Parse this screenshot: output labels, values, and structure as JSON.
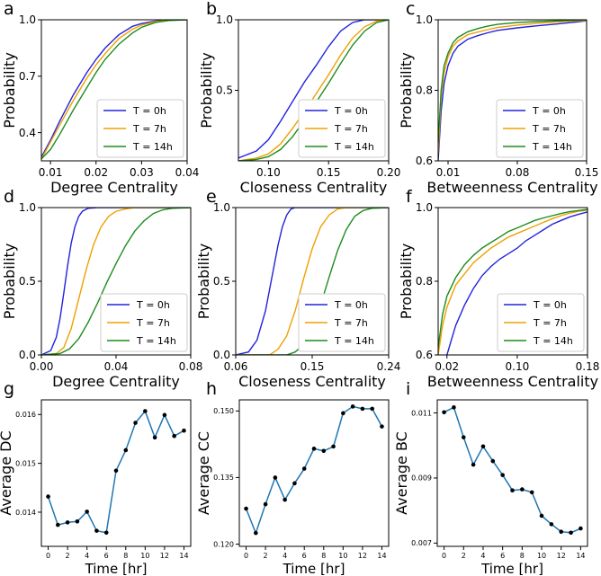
{
  "colors": {
    "t0": "#2222dd",
    "t7": "#f0a000",
    "t14": "#1e8c1e",
    "avg_line": "#1f77b4",
    "avg_marker": "#000000"
  },
  "chart_data": [
    {
      "panel": "a",
      "type": "line",
      "xlabel": "Degree Centrality",
      "ylabel": "Probability",
      "xlim": [
        0.008,
        0.04
      ],
      "ylim": [
        0.25,
        1.0
      ],
      "xticks": [
        0.01,
        0.02,
        0.03,
        0.04
      ],
      "xtick_labels": [
        "0.01",
        "0.02",
        "0.03",
        "0.04"
      ],
      "yticks": [
        0.4,
        0.7,
        1.0
      ],
      "ytick_labels": [
        "0.4",
        "0.7",
        "1.0"
      ],
      "legend": "bottom-right",
      "series": [
        {
          "name": "T = 0h",
          "color": "t0",
          "x": [
            0.008,
            0.01,
            0.012,
            0.015,
            0.018,
            0.02,
            0.022,
            0.025,
            0.028,
            0.03,
            0.033,
            0.036,
            0.04
          ],
          "y": [
            0.27,
            0.36,
            0.46,
            0.6,
            0.72,
            0.79,
            0.85,
            0.92,
            0.965,
            0.98,
            0.993,
            0.998,
            1.0
          ]
        },
        {
          "name": "T = 7h",
          "color": "t7",
          "x": [
            0.008,
            0.01,
            0.012,
            0.015,
            0.018,
            0.02,
            0.022,
            0.025,
            0.028,
            0.03,
            0.033,
            0.036,
            0.04
          ],
          "y": [
            0.26,
            0.35,
            0.44,
            0.57,
            0.69,
            0.76,
            0.82,
            0.9,
            0.95,
            0.972,
            0.99,
            0.997,
            1.0
          ]
        },
        {
          "name": "T = 14h",
          "color": "t14",
          "x": [
            0.008,
            0.01,
            0.012,
            0.015,
            0.018,
            0.02,
            0.022,
            0.025,
            0.028,
            0.03,
            0.033,
            0.036,
            0.04
          ],
          "y": [
            0.26,
            0.31,
            0.39,
            0.52,
            0.64,
            0.72,
            0.79,
            0.87,
            0.93,
            0.96,
            0.985,
            0.996,
            1.0
          ]
        }
      ]
    },
    {
      "panel": "b",
      "type": "line",
      "xlabel": "Closeness Centrality",
      "ylabel": "Probability",
      "xlim": [
        0.075,
        0.2
      ],
      "ylim": [
        0,
        1.0
      ],
      "xticks": [
        0.1,
        0.15,
        0.2
      ],
      "xtick_labels": [
        "0.10",
        "0.15",
        "0.20"
      ],
      "yticks": [
        0.5,
        1.0
      ],
      "ytick_labels": [
        "0.5",
        "1.0"
      ],
      "legend": "bottom-right",
      "series": [
        {
          "name": "T = 0h",
          "color": "t0",
          "x": [
            0.075,
            0.09,
            0.1,
            0.11,
            0.12,
            0.13,
            0.14,
            0.15,
            0.16,
            0.17,
            0.18,
            0.2
          ],
          "y": [
            0.02,
            0.07,
            0.15,
            0.28,
            0.42,
            0.56,
            0.68,
            0.81,
            0.92,
            0.98,
            1.0,
            1.0
          ]
        },
        {
          "name": "T = 7h",
          "color": "t7",
          "x": [
            0.075,
            0.09,
            0.1,
            0.11,
            0.12,
            0.13,
            0.14,
            0.15,
            0.16,
            0.17,
            0.18,
            0.19,
            0.2
          ],
          "y": [
            0.0,
            0.02,
            0.05,
            0.12,
            0.23,
            0.35,
            0.48,
            0.61,
            0.75,
            0.87,
            0.95,
            0.99,
            1.0
          ]
        },
        {
          "name": "T = 14h",
          "color": "t14",
          "x": [
            0.075,
            0.09,
            0.1,
            0.11,
            0.12,
            0.13,
            0.14,
            0.15,
            0.16,
            0.17,
            0.18,
            0.19,
            0.2
          ],
          "y": [
            0.0,
            0.01,
            0.03,
            0.08,
            0.17,
            0.29,
            0.42,
            0.55,
            0.69,
            0.82,
            0.92,
            0.98,
            1.0
          ]
        }
      ]
    },
    {
      "panel": "c",
      "type": "line",
      "xlabel": "Betweenness Centrality",
      "ylabel": "Probability",
      "xlim": [
        0.0,
        0.15
      ],
      "ylim": [
        0.6,
        1.0
      ],
      "xticks": [
        0.01,
        0.08,
        0.15
      ],
      "xtick_labels": [
        "0.01",
        "0.08",
        "0.15"
      ],
      "yticks": [
        0.6,
        0.8,
        1.0
      ],
      "ytick_labels": [
        "0.6",
        "0.8",
        "1.0"
      ],
      "legend": "bottom-right",
      "series": [
        {
          "name": "T = 0h",
          "color": "t0",
          "x": [
            0.0,
            0.003,
            0.006,
            0.01,
            0.015,
            0.02,
            0.03,
            0.04,
            0.05,
            0.06,
            0.08,
            0.1,
            0.12,
            0.14,
            0.15
          ],
          "y": [
            0.6,
            0.74,
            0.82,
            0.87,
            0.905,
            0.925,
            0.945,
            0.955,
            0.963,
            0.97,
            0.977,
            0.983,
            0.988,
            0.994,
            0.997
          ]
        },
        {
          "name": "T = 7h",
          "color": "t7",
          "x": [
            0.0,
            0.003,
            0.006,
            0.01,
            0.015,
            0.02,
            0.03,
            0.04,
            0.05,
            0.06,
            0.08,
            0.1,
            0.12,
            0.14,
            0.15
          ],
          "y": [
            0.62,
            0.78,
            0.85,
            0.895,
            0.925,
            0.94,
            0.958,
            0.965,
            0.972,
            0.978,
            0.985,
            0.99,
            0.994,
            0.997,
            0.998
          ]
        },
        {
          "name": "T = 14h",
          "color": "t14",
          "x": [
            0.0,
            0.003,
            0.006,
            0.01,
            0.015,
            0.02,
            0.03,
            0.04,
            0.05,
            0.06,
            0.08,
            0.1,
            0.12,
            0.14,
            0.15
          ],
          "y": [
            0.65,
            0.8,
            0.87,
            0.905,
            0.935,
            0.95,
            0.966,
            0.975,
            0.982,
            0.987,
            0.992,
            0.995,
            0.997,
            0.999,
            1.0
          ]
        }
      ]
    },
    {
      "panel": "d",
      "type": "line",
      "xlabel": "Degree Centrality",
      "ylabel": "Probability",
      "xlim": [
        0.0,
        0.08
      ],
      "ylim": [
        0,
        1.0
      ],
      "xticks": [
        0.0,
        0.04,
        0.08
      ],
      "xtick_labels": [
        "0.00",
        "0.04",
        "0.08"
      ],
      "yticks": [
        0.0,
        0.5,
        1.0
      ],
      "ytick_labels": [
        "0.0",
        "0.5",
        "1.0"
      ],
      "legend": "bottom-right",
      "series": [
        {
          "name": "T = 0h",
          "color": "t0",
          "x": [
            0.0,
            0.005,
            0.008,
            0.01,
            0.012,
            0.014,
            0.016,
            0.018,
            0.02,
            0.022,
            0.025,
            0.03,
            0.08
          ],
          "y": [
            0.0,
            0.03,
            0.12,
            0.25,
            0.42,
            0.6,
            0.76,
            0.87,
            0.94,
            0.975,
            0.995,
            1.0,
            1.0
          ]
        },
        {
          "name": "T = 7h",
          "color": "t7",
          "x": [
            0.0,
            0.008,
            0.012,
            0.016,
            0.02,
            0.024,
            0.028,
            0.032,
            0.036,
            0.04,
            0.045,
            0.05,
            0.08
          ],
          "y": [
            0.0,
            0.01,
            0.05,
            0.18,
            0.38,
            0.58,
            0.75,
            0.87,
            0.94,
            0.975,
            0.99,
            1.0,
            1.0
          ]
        },
        {
          "name": "T = 14h",
          "color": "t14",
          "x": [
            0.0,
            0.01,
            0.015,
            0.02,
            0.025,
            0.03,
            0.035,
            0.04,
            0.045,
            0.05,
            0.055,
            0.06,
            0.065,
            0.07,
            0.08
          ],
          "y": [
            0.0,
            0.01,
            0.04,
            0.11,
            0.22,
            0.35,
            0.49,
            0.62,
            0.74,
            0.84,
            0.91,
            0.96,
            0.985,
            0.995,
            1.0
          ]
        }
      ]
    },
    {
      "panel": "e",
      "type": "line",
      "xlabel": "Closeness Centrality",
      "ylabel": "Probability",
      "xlim": [
        0.06,
        0.24
      ],
      "ylim": [
        0,
        1.0
      ],
      "xticks": [
        0.06,
        0.15,
        0.24
      ],
      "xtick_labels": [
        "0.06",
        "0.15",
        "0.24"
      ],
      "yticks": [
        0.0,
        0.5,
        1.0
      ],
      "ytick_labels": [
        "0.0",
        "0.5",
        "1.0"
      ],
      "legend": "bottom-right",
      "series": [
        {
          "name": "T = 0h",
          "color": "t0",
          "x": [
            0.06,
            0.075,
            0.085,
            0.095,
            0.1,
            0.105,
            0.11,
            0.115,
            0.12,
            0.125,
            0.13,
            0.24
          ],
          "y": [
            0.0,
            0.02,
            0.1,
            0.3,
            0.45,
            0.6,
            0.75,
            0.87,
            0.95,
            0.99,
            1.0,
            1.0
          ]
        },
        {
          "name": "T = 7h",
          "color": "t7",
          "x": [
            0.06,
            0.1,
            0.11,
            0.12,
            0.13,
            0.14,
            0.15,
            0.16,
            0.17,
            0.18,
            0.19,
            0.24
          ],
          "y": [
            0.0,
            0.0,
            0.04,
            0.13,
            0.3,
            0.52,
            0.72,
            0.87,
            0.95,
            0.99,
            1.0,
            1.0
          ]
        },
        {
          "name": "T = 14h",
          "color": "t14",
          "x": [
            0.06,
            0.12,
            0.13,
            0.14,
            0.15,
            0.16,
            0.17,
            0.18,
            0.19,
            0.2,
            0.21,
            0.22,
            0.24
          ],
          "y": [
            0.0,
            0.0,
            0.02,
            0.07,
            0.18,
            0.34,
            0.53,
            0.71,
            0.85,
            0.94,
            0.98,
            0.995,
            1.0
          ]
        }
      ]
    },
    {
      "panel": "f",
      "type": "line",
      "xlabel": "Betweenness Centrality",
      "ylabel": "Probability",
      "xlim": [
        0.01,
        0.18
      ],
      "ylim": [
        0.6,
        1.0
      ],
      "xticks": [
        0.02,
        0.1,
        0.18
      ],
      "xtick_labels": [
        "0.02",
        "0.10",
        "0.18"
      ],
      "yticks": [
        0.6,
        0.8,
        1.0
      ],
      "ytick_labels": [
        "0.6",
        "0.8",
        "1.0"
      ],
      "legend": "bottom-right",
      "series": [
        {
          "name": "T = 0h",
          "color": "t0",
          "x": [
            0.02,
            0.025,
            0.03,
            0.04,
            0.05,
            0.06,
            0.07,
            0.08,
            0.09,
            0.1,
            0.11,
            0.12,
            0.13,
            0.14,
            0.15,
            0.16,
            0.17,
            0.18
          ],
          "y": [
            0.6,
            0.64,
            0.68,
            0.735,
            0.78,
            0.815,
            0.84,
            0.86,
            0.875,
            0.89,
            0.91,
            0.925,
            0.94,
            0.955,
            0.965,
            0.975,
            0.982,
            0.988
          ]
        },
        {
          "name": "T = 7h",
          "color": "t7",
          "x": [
            0.01,
            0.015,
            0.02,
            0.03,
            0.04,
            0.05,
            0.06,
            0.07,
            0.08,
            0.09,
            0.1,
            0.11,
            0.12,
            0.13,
            0.14,
            0.15,
            0.16,
            0.17,
            0.18
          ],
          "y": [
            0.6,
            0.68,
            0.73,
            0.79,
            0.82,
            0.85,
            0.87,
            0.89,
            0.905,
            0.92,
            0.93,
            0.94,
            0.95,
            0.96,
            0.97,
            0.978,
            0.985,
            0.99,
            0.993
          ]
        },
        {
          "name": "T = 14h",
          "color": "t14",
          "x": [
            0.01,
            0.015,
            0.02,
            0.03,
            0.04,
            0.05,
            0.06,
            0.07,
            0.08,
            0.09,
            0.1,
            0.11,
            0.12,
            0.13,
            0.14,
            0.15,
            0.16,
            0.17,
            0.18
          ],
          "y": [
            0.62,
            0.71,
            0.76,
            0.81,
            0.845,
            0.87,
            0.89,
            0.905,
            0.92,
            0.935,
            0.945,
            0.955,
            0.965,
            0.972,
            0.978,
            0.984,
            0.989,
            0.992,
            0.995
          ]
        }
      ]
    },
    {
      "panel": "g",
      "type": "line",
      "xlabel": "Time [hr]",
      "ylabel": "Average DC",
      "xlim": [
        -0.7,
        14.7
      ],
      "ylim": [
        0.0133,
        0.0163
      ],
      "xticks": [
        0,
        2,
        4,
        6,
        8,
        10,
        12,
        14
      ],
      "xtick_labels": [
        "0",
        "2",
        "4",
        "6",
        "8",
        "10",
        "12",
        "14"
      ],
      "yticks": [
        0.014,
        0.015,
        0.016
      ],
      "ytick_labels": [
        "0.014",
        "0.015",
        "0.016"
      ],
      "series": [
        {
          "color": "avg_line",
          "x": [
            0,
            1,
            2,
            3,
            4,
            5,
            6,
            7,
            8,
            9,
            10,
            11,
            12,
            13,
            14
          ],
          "y": [
            0.01432,
            0.01374,
            0.01379,
            0.01381,
            0.01401,
            0.01362,
            0.01358,
            0.01485,
            0.01527,
            0.01583,
            0.01607,
            0.01553,
            0.01599,
            0.01556,
            0.01567
          ]
        }
      ]
    },
    {
      "panel": "h",
      "type": "line",
      "xlabel": "Time [hr]",
      "ylabel": "Average CC",
      "xlim": [
        -0.7,
        14.7
      ],
      "ylim": [
        0.1195,
        0.1525
      ],
      "xticks": [
        0,
        2,
        4,
        6,
        8,
        10,
        12,
        14
      ],
      "xtick_labels": [
        "0",
        "2",
        "4",
        "6",
        "8",
        "10",
        "12",
        "14"
      ],
      "yticks": [
        0.12,
        0.135,
        0.15
      ],
      "ytick_labels": [
        "0.120",
        "0.135",
        "0.150"
      ],
      "series": [
        {
          "color": "avg_line",
          "x": [
            0,
            1,
            2,
            3,
            4,
            5,
            6,
            7,
            8,
            9,
            10,
            11,
            12,
            13,
            14
          ],
          "y": [
            0.128,
            0.1225,
            0.129,
            0.135,
            0.13,
            0.1337,
            0.137,
            0.1415,
            0.141,
            0.142,
            0.1495,
            0.151,
            0.1505,
            0.1505,
            0.1465
          ]
        }
      ]
    },
    {
      "panel": "i",
      "type": "line",
      "xlabel": "Time [hr]",
      "ylabel": "Average BC",
      "xlim": [
        -0.7,
        14.7
      ],
      "ylim": [
        0.0069,
        0.0114
      ],
      "xticks": [
        0,
        2,
        4,
        6,
        8,
        10,
        12,
        14
      ],
      "xtick_labels": [
        "0",
        "2",
        "4",
        "6",
        "8",
        "10",
        "12",
        "14"
      ],
      "yticks": [
        0.007,
        0.009,
        0.011
      ],
      "ytick_labels": [
        "0.007",
        "0.009",
        "0.011"
      ],
      "series": [
        {
          "color": "avg_line",
          "x": [
            0,
            1,
            2,
            3,
            4,
            5,
            6,
            7,
            8,
            9,
            10,
            11,
            12,
            13,
            14
          ],
          "y": [
            0.01102,
            0.01117,
            0.01025,
            0.00941,
            0.00997,
            0.00952,
            0.00909,
            0.00862,
            0.00865,
            0.00856,
            0.00784,
            0.00758,
            0.00735,
            0.00732,
            0.00745
          ]
        }
      ]
    }
  ]
}
